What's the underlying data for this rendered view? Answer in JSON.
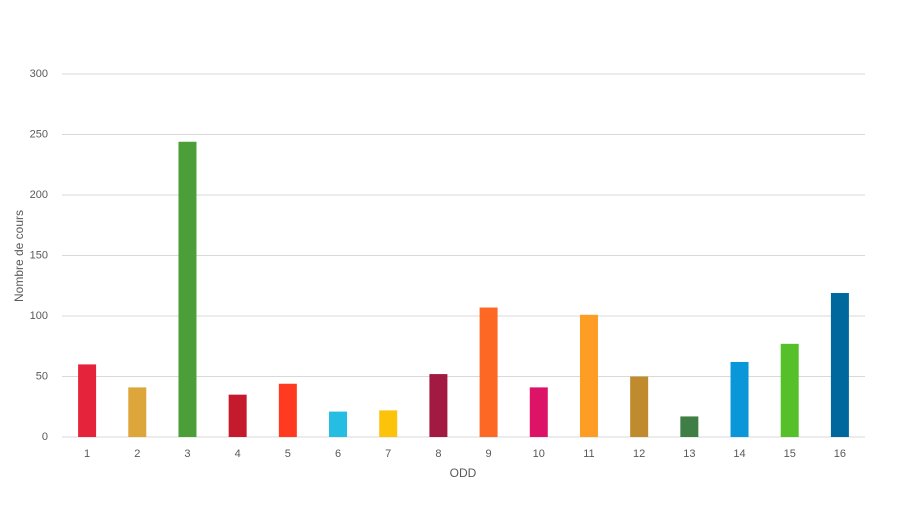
{
  "chart_data": {
    "type": "bar",
    "x_label": "ODD",
    "y_label": "Nombre de cours",
    "categories": [
      "1",
      "2",
      "3",
      "4",
      "5",
      "6",
      "7",
      "8",
      "9",
      "10",
      "11",
      "12",
      "13",
      "14",
      "15",
      "16"
    ],
    "values": [
      60,
      41,
      244,
      35,
      44,
      21,
      22,
      52,
      107,
      41,
      101,
      50,
      17,
      62,
      77,
      119
    ],
    "colors": [
      "#e5243b",
      "#dda63a",
      "#4c9f38",
      "#c5192d",
      "#ff3a21",
      "#26bde2",
      "#fcc30b",
      "#a21942",
      "#fd6925",
      "#dd1367",
      "#fd9d24",
      "#bf8b2e",
      "#3f7e44",
      "#0a97d9",
      "#56c02b",
      "#00689d"
    ],
    "ylim": [
      0,
      300
    ],
    "yticks": [
      0,
      50,
      100,
      150,
      200,
      250,
      300
    ],
    "grid": true
  }
}
